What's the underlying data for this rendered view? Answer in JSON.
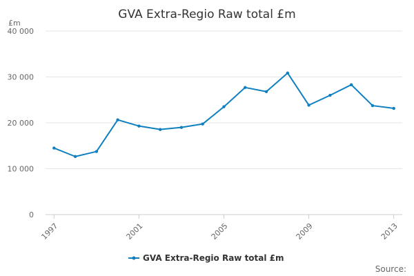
{
  "chart_data": {
    "type": "line",
    "title": "GVA Extra-Regio Raw total £m",
    "y_unit_label": "£m",
    "xlabel": "",
    "ylabel": "",
    "x": [
      1997,
      1998,
      1999,
      2000,
      2001,
      2002,
      2003,
      2004,
      2005,
      2006,
      2007,
      2008,
      2009,
      2010,
      2011,
      2012,
      2013
    ],
    "x_tick_labels": [
      "1997",
      "2001",
      "2005",
      "2009",
      "2013"
    ],
    "x_tick_values": [
      1997,
      2001,
      2005,
      2009,
      2013
    ],
    "y_tick_labels": [
      "0",
      "10 000",
      "20 000",
      "30 000",
      "40 000"
    ],
    "y_tick_values": [
      0,
      10000,
      20000,
      30000,
      40000
    ],
    "ylim": [
      0,
      40000
    ],
    "xlim": [
      1996.6,
      2013.4
    ],
    "grid": true,
    "legend_position": "bottom-center",
    "series": [
      {
        "name": "GVA Extra-Regio Raw total £m",
        "color": "#0e7fbf",
        "values": [
          14500,
          12650,
          13750,
          20650,
          19300,
          18550,
          19000,
          19750,
          23500,
          27700,
          26800,
          30850,
          23850,
          26000,
          28300,
          23750,
          23150
        ]
      }
    ],
    "credits": "Source:"
  }
}
